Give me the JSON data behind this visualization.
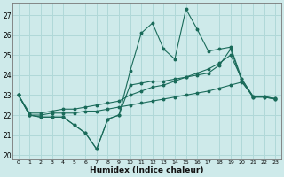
{
  "xlabel": "Humidex (Indice chaleur)",
  "bg_color": "#ceeaea",
  "grid_color": "#b0d8d8",
  "line_color": "#1a6b5a",
  "xlim": [
    -0.5,
    23.5
  ],
  "ylim": [
    19.8,
    27.6
  ],
  "yticks": [
    20,
    21,
    22,
    23,
    24,
    25,
    26,
    27
  ],
  "xticks": [
    0,
    1,
    2,
    3,
    4,
    5,
    6,
    7,
    8,
    9,
    10,
    11,
    12,
    13,
    14,
    15,
    16,
    17,
    18,
    19,
    20,
    21,
    22,
    23
  ],
  "series_main": [
    23.0,
    22.0,
    21.9,
    21.9,
    21.9,
    21.5,
    21.1,
    20.3,
    21.8,
    22.0,
    24.2,
    26.1,
    26.6,
    25.3,
    24.8,
    27.3,
    26.3,
    25.2,
    25.3,
    25.4,
    23.8,
    22.9,
    22.9,
    22.8
  ],
  "series_line2": [
    23.0,
    22.0,
    21.9,
    21.9,
    21.9,
    21.5,
    21.1,
    20.3,
    21.8,
    22.0,
    23.5,
    23.6,
    23.7,
    23.7,
    23.8,
    23.9,
    24.0,
    24.1,
    24.5,
    25.3,
    23.7,
    22.9,
    22.9,
    22.8
  ],
  "series_line3": [
    23.0,
    22.1,
    22.1,
    22.2,
    22.3,
    22.3,
    22.4,
    22.5,
    22.6,
    22.7,
    23.0,
    23.2,
    23.4,
    23.5,
    23.7,
    23.9,
    24.1,
    24.3,
    24.6,
    25.0,
    23.8,
    22.95,
    22.93,
    22.82
  ],
  "series_line4": [
    23.0,
    22.0,
    22.0,
    22.1,
    22.1,
    22.1,
    22.2,
    22.2,
    22.3,
    22.4,
    22.5,
    22.6,
    22.7,
    22.8,
    22.9,
    23.0,
    23.1,
    23.2,
    23.35,
    23.5,
    23.65,
    22.95,
    22.92,
    22.82
  ]
}
